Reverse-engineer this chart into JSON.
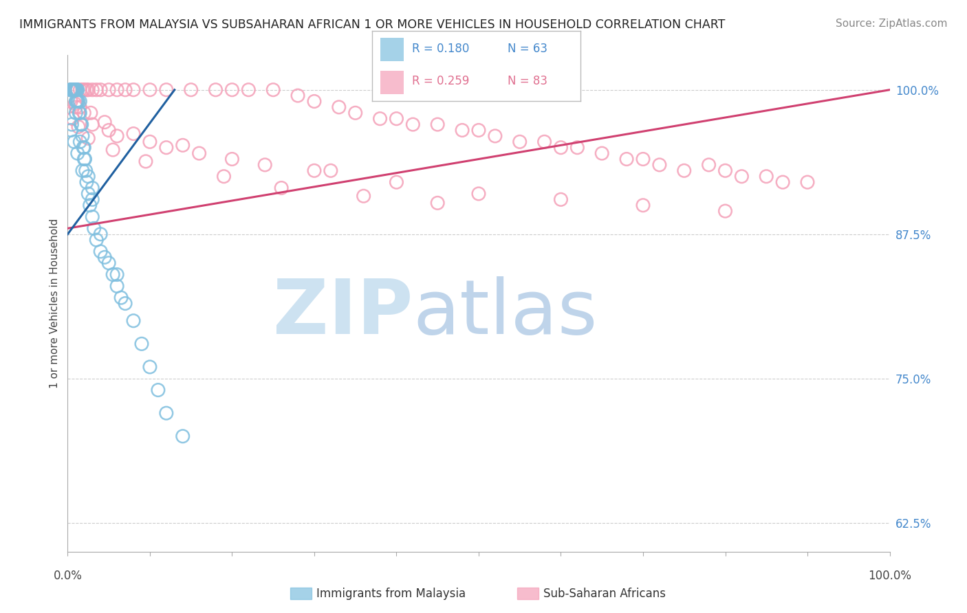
{
  "title": "IMMIGRANTS FROM MALAYSIA VS SUBSAHARAN AFRICAN 1 OR MORE VEHICLES IN HOUSEHOLD CORRELATION CHART",
  "source": "Source: ZipAtlas.com",
  "ylabel": "1 or more Vehicles in Household",
  "right_yticks": [
    62.5,
    75.0,
    87.5,
    100.0
  ],
  "right_ytick_labels": [
    "62.5%",
    "75.0%",
    "87.5%",
    "100.0%"
  ],
  "legend_labels_bottom": [
    "Immigrants from Malaysia",
    "Sub-Saharan Africans"
  ],
  "blue_color": "#7fbfdf",
  "pink_color": "#f4a0b8",
  "blue_edge_color": "#5aa0cc",
  "pink_edge_color": "#e07090",
  "blue_line_color": "#2060a0",
  "pink_line_color": "#d04070",
  "blue_scatter_x": [
    0.3,
    0.4,
    0.5,
    0.5,
    0.6,
    0.6,
    0.7,
    0.7,
    0.7,
    0.8,
    0.8,
    0.9,
    0.9,
    1.0,
    1.0,
    1.0,
    1.1,
    1.1,
    1.2,
    1.2,
    1.3,
    1.4,
    1.5,
    1.5,
    1.6,
    1.7,
    1.8,
    1.9,
    2.0,
    2.1,
    2.2,
    2.3,
    2.5,
    2.7,
    3.0,
    3.2,
    3.5,
    4.0,
    4.5,
    5.0,
    5.5,
    6.0,
    6.5,
    7.0,
    8.0,
    9.0,
    10.0,
    11.0,
    12.0,
    14.0,
    1.0,
    2.0,
    3.0,
    4.0,
    0.5,
    1.5,
    2.5,
    6.0,
    0.4,
    0.8,
    1.2,
    1.8,
    3.0
  ],
  "blue_scatter_y": [
    100.0,
    100.0,
    100.0,
    100.0,
    100.0,
    100.0,
    100.0,
    100.0,
    100.0,
    100.0,
    100.0,
    100.0,
    100.0,
    100.0,
    100.0,
    99.0,
    100.0,
    99.0,
    100.0,
    99.0,
    99.0,
    98.0,
    99.0,
    98.0,
    97.0,
    97.0,
    96.0,
    95.0,
    95.0,
    94.0,
    93.0,
    92.0,
    91.0,
    90.0,
    89.0,
    88.0,
    87.0,
    86.0,
    85.5,
    85.0,
    84.0,
    83.0,
    82.0,
    81.5,
    80.0,
    78.0,
    76.0,
    74.0,
    72.0,
    70.0,
    98.0,
    94.0,
    91.5,
    87.5,
    97.0,
    95.5,
    92.5,
    84.0,
    96.5,
    95.5,
    94.5,
    93.0,
    90.5
  ],
  "pink_scatter_x": [
    0.5,
    0.7,
    0.8,
    1.0,
    1.2,
    1.5,
    1.8,
    2.0,
    2.3,
    2.5,
    3.0,
    3.5,
    4.0,
    5.0,
    6.0,
    7.0,
    8.0,
    10.0,
    12.0,
    15.0,
    18.0,
    20.0,
    22.0,
    25.0,
    28.0,
    30.0,
    33.0,
    35.0,
    38.0,
    40.0,
    42.0,
    45.0,
    48.0,
    50.0,
    52.0,
    55.0,
    58.0,
    60.0,
    62.0,
    65.0,
    68.0,
    70.0,
    72.0,
    75.0,
    78.0,
    80.0,
    82.0,
    85.0,
    87.0,
    90.0,
    1.0,
    3.0,
    6.0,
    12.0,
    20.0,
    30.0,
    40.0,
    50.0,
    60.0,
    70.0,
    80.0,
    2.0,
    5.0,
    10.0,
    16.0,
    24.0,
    32.0,
    0.4,
    0.9,
    1.5,
    2.8,
    4.5,
    8.0,
    14.0,
    0.6,
    1.3,
    2.5,
    5.5,
    9.5,
    19.0,
    26.0,
    36.0,
    45.0
  ],
  "pink_scatter_y": [
    100.0,
    100.0,
    100.0,
    100.0,
    100.0,
    100.0,
    100.0,
    100.0,
    100.0,
    100.0,
    100.0,
    100.0,
    100.0,
    100.0,
    100.0,
    100.0,
    100.0,
    100.0,
    100.0,
    100.0,
    100.0,
    100.0,
    100.0,
    100.0,
    99.5,
    99.0,
    98.5,
    98.0,
    97.5,
    97.5,
    97.0,
    97.0,
    96.5,
    96.5,
    96.0,
    95.5,
    95.5,
    95.0,
    95.0,
    94.5,
    94.0,
    94.0,
    93.5,
    93.0,
    93.5,
    93.0,
    92.5,
    92.5,
    92.0,
    92.0,
    98.5,
    97.0,
    96.0,
    95.0,
    94.0,
    93.0,
    92.0,
    91.0,
    90.5,
    90.0,
    89.5,
    98.0,
    96.5,
    95.5,
    94.5,
    93.5,
    93.0,
    99.0,
    98.8,
    98.5,
    98.0,
    97.2,
    96.2,
    95.2,
    97.5,
    96.8,
    95.8,
    94.8,
    93.8,
    92.5,
    91.5,
    90.8,
    90.2
  ],
  "blue_trend_x": [
    0.0,
    13.0
  ],
  "blue_trend_y": [
    87.5,
    100.0
  ],
  "pink_trend_x": [
    0.0,
    100.0
  ],
  "pink_trend_y": [
    88.0,
    100.0
  ],
  "xlim": [
    0,
    100
  ],
  "ylim": [
    60,
    103
  ],
  "figsize": [
    14.06,
    8.92
  ],
  "dpi": 100,
  "background_color": "#ffffff",
  "watermark_zip": "ZIP",
  "watermark_atlas": "atlas",
  "watermark_color_zip": "#c8dff0",
  "watermark_color_atlas": "#b8d0e8",
  "grid_color": "#cccccc",
  "tick_label_color": "#4488cc"
}
